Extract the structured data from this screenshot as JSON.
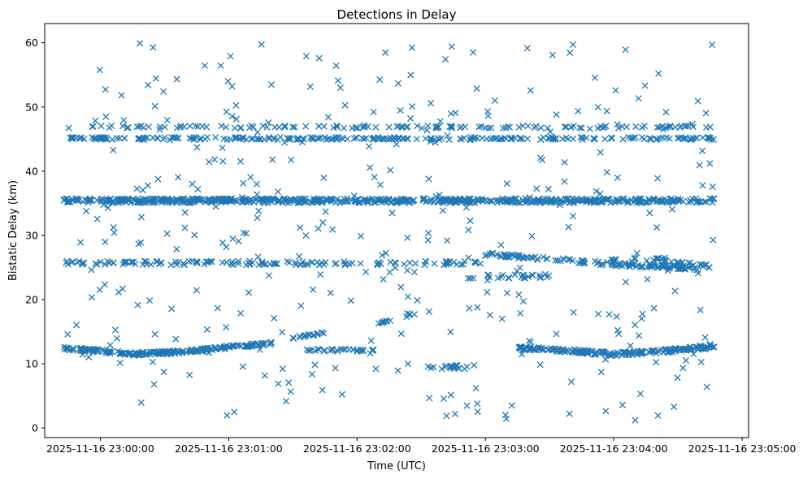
{
  "chart_data": {
    "type": "scatter",
    "title": "Detections in Delay",
    "xlabel": "Time (UTC)",
    "ylabel": "Bistatic Delay (km)",
    "marker": "x",
    "color": "#1f77b4",
    "xlim_seconds": [
      -26,
      303
    ],
    "ylim": [
      -1.5,
      63
    ],
    "x_ticks": [
      {
        "value": 0,
        "label": "2025-11-16 23:00:00"
      },
      {
        "value": 60,
        "label": "2025-11-16 23:01:00"
      },
      {
        "value": 120,
        "label": "2025-11-16 23:02:00"
      },
      {
        "value": 180,
        "label": "2025-11-16 23:03:00"
      },
      {
        "value": 240,
        "label": "2025-11-16 23:04:00"
      },
      {
        "value": 300,
        "label": "2025-11-16 23:05:00"
      }
    ],
    "y_ticks": [
      {
        "value": 0,
        "label": "0"
      },
      {
        "value": 10,
        "label": "10"
      },
      {
        "value": 20,
        "label": "20"
      },
      {
        "value": 30,
        "label": "30"
      },
      {
        "value": 40,
        "label": "40"
      },
      {
        "value": 50,
        "label": "50"
      },
      {
        "value": 60,
        "label": "60"
      }
    ],
    "time_range_seconds": [
      -17,
      287
    ],
    "series": [
      {
        "name": "band_47",
        "kind": "band",
        "x_range": [
          -17,
          287
        ],
        "y": 46.9,
        "jitter": 0.2,
        "density": 0.45
      },
      {
        "name": "band_45",
        "kind": "band",
        "x_range": [
          -17,
          287
        ],
        "y": 45.1,
        "jitter": 0.2,
        "density": 0.9
      },
      {
        "name": "band_35",
        "kind": "band",
        "x_range": [
          -17,
          287
        ],
        "y": 35.4,
        "jitter": 0.35,
        "density": 2.2
      },
      {
        "name": "band_25.7",
        "kind": "band",
        "x_range": [
          -17,
          180
        ],
        "y": 25.7,
        "jitter": 0.3,
        "density": 0.7
      },
      {
        "name": "track_27_to_25",
        "kind": "line",
        "points": [
          [
            180,
            27.1
          ],
          [
            210,
            26.3
          ],
          [
            235,
            25.6
          ],
          [
            285,
            24.8
          ]
        ],
        "jitter": 0.3,
        "density": 1.2
      },
      {
        "name": "track_26_hump",
        "kind": "line",
        "points": [
          [
            238,
            26.0
          ],
          [
            260,
            26.4
          ],
          [
            285,
            25.2
          ]
        ],
        "jitter": 0.3,
        "density": 0.8
      },
      {
        "name": "track_23.6",
        "kind": "band",
        "x_range": [
          170,
          210
        ],
        "y": 23.6,
        "jitter": 0.3,
        "density": 0.6
      },
      {
        "name": "track_12_left",
        "kind": "line",
        "points": [
          [
            -17,
            12.4
          ],
          [
            0,
            12.0
          ],
          [
            15,
            11.5
          ],
          [
            40,
            11.9
          ],
          [
            60,
            12.6
          ],
          [
            80,
            13.2
          ]
        ],
        "jitter": 0.25,
        "density": 2.2
      },
      {
        "name": "track_14",
        "kind": "line",
        "points": [
          [
            90,
            14.0
          ],
          [
            105,
            14.8
          ]
        ],
        "jitter": 0.2,
        "density": 1.2
      },
      {
        "name": "track_12_mid",
        "kind": "band",
        "x_range": [
          95,
          130
        ],
        "y": 12.1,
        "jitter": 0.2,
        "density": 0.8
      },
      {
        "name": "track_17",
        "kind": "line",
        "points": [
          [
            130,
            16.4
          ],
          [
            150,
            18.0
          ]
        ],
        "jitter": 0.2,
        "density": 0.6
      },
      {
        "name": "track_9.5",
        "kind": "band",
        "x_range": [
          150,
          175
        ],
        "y": 9.5,
        "jitter": 0.3,
        "density": 0.7
      },
      {
        "name": "track_12_right",
        "kind": "line",
        "points": [
          [
            195,
            12.5
          ],
          [
            215,
            12.1
          ],
          [
            240,
            11.5
          ],
          [
            262,
            11.9
          ],
          [
            287,
            12.7
          ]
        ],
        "jitter": 0.3,
        "density": 2.2
      },
      {
        "name": "noise",
        "kind": "scatter_random",
        "x_range": [
          -17,
          287
        ],
        "y_range": [
          1,
          60
        ],
        "count": 360
      }
    ]
  }
}
